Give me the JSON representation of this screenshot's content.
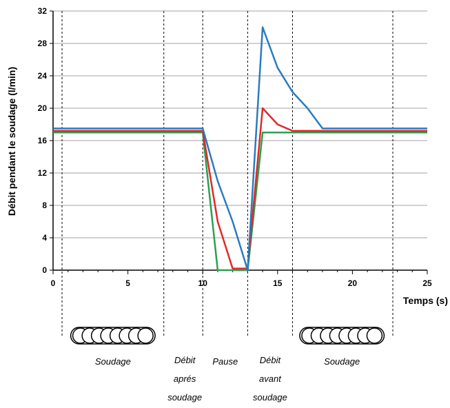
{
  "chart_data": {
    "type": "line",
    "xlabel": "Temps (s)",
    "ylabel": "Débit pendant le soudage (l/min)",
    "xlim": [
      0,
      25
    ],
    "ylim": [
      0,
      32
    ],
    "xticks": [
      0,
      5,
      10,
      15,
      20,
      25
    ],
    "yticks": [
      0,
      4,
      8,
      12,
      16,
      20,
      24,
      28,
      32
    ],
    "grid": "horizontal",
    "legend": "none",
    "series_colors": [
      "#2a7ac0",
      "#e02828",
      "#2aa050"
    ],
    "series": [
      {
        "x": [
          0,
          10,
          11,
          12,
          13,
          14,
          15,
          16,
          17,
          18,
          25
        ],
        "y": [
          17.5,
          17.5,
          11,
          6,
          0,
          30,
          25,
          22,
          20,
          17.5,
          17.5
        ]
      },
      {
        "x": [
          0,
          10,
          11,
          12,
          13,
          14,
          15,
          16,
          25
        ],
        "y": [
          17.2,
          17.2,
          6,
          0.2,
          0.2,
          20,
          18,
          17.2,
          17.2
        ]
      },
      {
        "x": [
          0,
          10,
          11,
          13,
          14,
          25
        ],
        "y": [
          17,
          17,
          0,
          0,
          17,
          17
        ]
      }
    ],
    "phase_boundaries": [
      0.6,
      7.4,
      10,
      13,
      16,
      22.7
    ],
    "phases": [
      {
        "lines": [
          "Soudage"
        ],
        "x": 4.0,
        "coils": true
      },
      {
        "lines": [
          "Débit",
          "aprés",
          "soudage"
        ],
        "x": 8.8
      },
      {
        "lines": [
          "Pause"
        ],
        "x": 11.5
      },
      {
        "lines": [
          "Débit",
          "avant",
          "soudage"
        ],
        "x": 14.5
      },
      {
        "lines": [
          "Soudage"
        ],
        "x": 19.3,
        "coils": true
      }
    ]
  }
}
